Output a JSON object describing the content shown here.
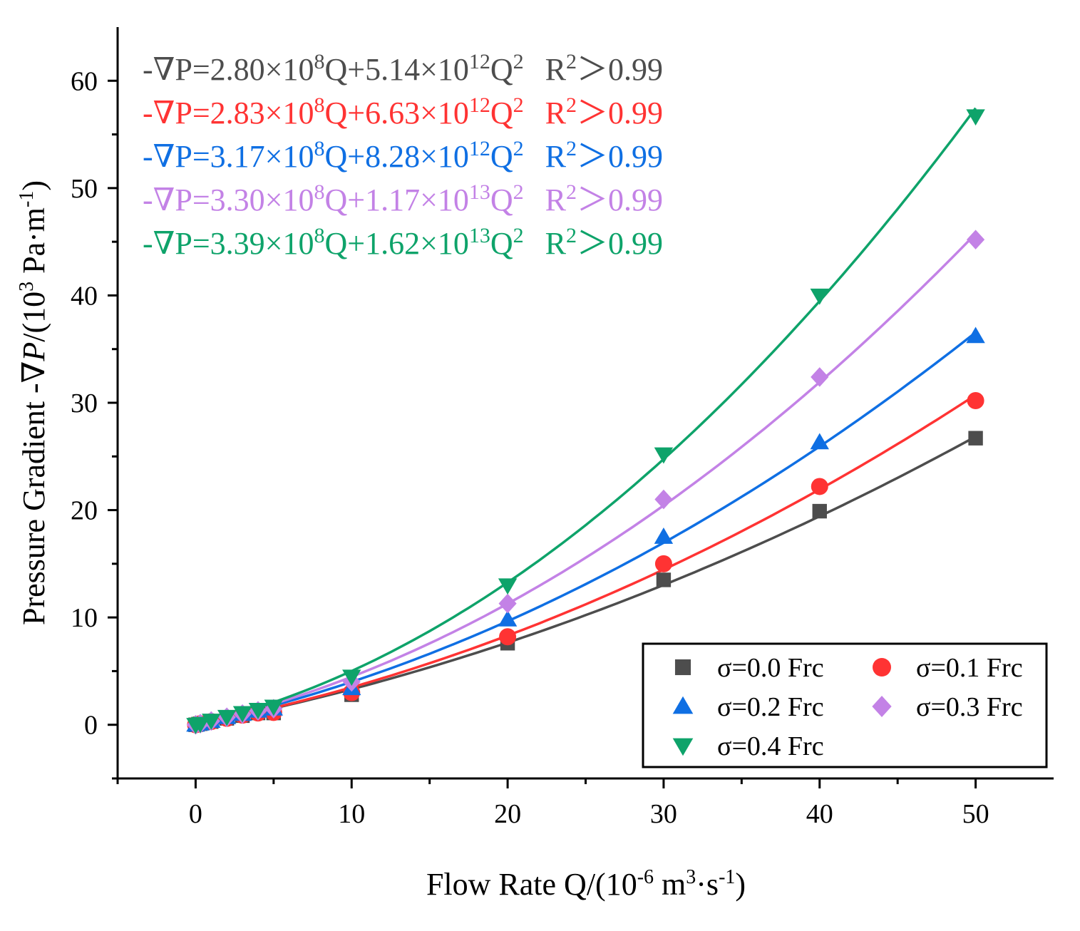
{
  "chart_data": {
    "type": "scatter",
    "xlabel": {
      "prefix": "Flow Rate Q/(10",
      "exp1": "-6",
      "mid1": " m",
      "exp2": "3",
      "mid2": "·s",
      "exp3": "-1",
      "suffix": ")"
    },
    "ylabel": {
      "prefix": "Pressure Gradient -∇",
      "italic": "P",
      "mid": "/(10",
      "exp1": "3",
      "mid2": " Pa·m",
      "exp2": "-1",
      "suffix": ")"
    },
    "xlim": [
      -5,
      55
    ],
    "ylim": [
      -5,
      65
    ],
    "x_ticks": [
      0,
      10,
      20,
      30,
      40,
      50
    ],
    "y_ticks": [
      0,
      10,
      20,
      30,
      40,
      50,
      60
    ],
    "x_tick_labels": [
      "0",
      "10",
      "20",
      "30",
      "40",
      "50"
    ],
    "y_tick_labels": [
      "0",
      "10",
      "20",
      "30",
      "40",
      "50",
      "60"
    ],
    "legend_position": "bottom-right",
    "series": [
      {
        "name": "σ=0.0 Frc",
        "color": "#4d4d4d",
        "marker": "square",
        "x": [
          0,
          0.3,
          1,
          2,
          3,
          4,
          5,
          10,
          20,
          30,
          40,
          50
        ],
        "y": [
          0,
          0.1,
          0.3,
          0.6,
          0.85,
          1.1,
          1.1,
          2.8,
          7.6,
          13.5,
          19.9,
          26.7
        ],
        "fit": {
          "a": 280000000.0,
          "b": 5140000000000.0
        },
        "equation": {
          "lead": "-∇P=2.80×10",
          "e1": "8",
          "mid": "Q+5.14×10",
          "e2": "12",
          "q": "Q",
          "e3": "2",
          "r": "R",
          "e4": "2",
          "tail": "＞0.99"
        }
      },
      {
        "name": "σ=0.1 Frc",
        "color": "#ff3333",
        "marker": "circle",
        "x": [
          0,
          0.3,
          1,
          2,
          3,
          4,
          5,
          10,
          20,
          30,
          40,
          50
        ],
        "y": [
          0,
          0.1,
          0.3,
          0.6,
          0.9,
          1.1,
          1.15,
          3.0,
          8.2,
          15.0,
          22.2,
          30.2
        ],
        "fit": {
          "a": 283000000.0,
          "b": 6630000000000.0
        },
        "equation": {
          "lead": "-∇P=2.83×10",
          "e1": "8",
          "mid": "Q+6.63×10",
          "e2": "12",
          "q": "Q",
          "e3": "2",
          "r": "R",
          "e4": "2",
          "tail": "＞0.99"
        }
      },
      {
        "name": "σ=0.2 Frc",
        "color": "#0f6fe3",
        "marker": "triangle-up",
        "x": [
          0,
          0.3,
          1,
          2,
          3,
          4,
          5,
          10,
          20,
          30,
          40,
          50
        ],
        "y": [
          0,
          0.1,
          0.35,
          0.7,
          1.0,
          1.3,
          1.5,
          3.4,
          9.8,
          17.5,
          26.3,
          36.2
        ],
        "fit": {
          "a": 317000000.0,
          "b": 8280000000000.0
        },
        "equation": {
          "lead": "-∇P=3.17×10",
          "e1": "8",
          "mid": "Q+8.28×10",
          "e2": "12",
          "q": "Q",
          "e3": "2",
          "r": "R",
          "e4": "2",
          "tail": "＞0.99"
        }
      },
      {
        "name": "σ=0.3 Frc",
        "color": "#c382e6",
        "marker": "diamond",
        "x": [
          0,
          0.3,
          1,
          2,
          3,
          4,
          5,
          10,
          20,
          30,
          40,
          50
        ],
        "y": [
          0,
          0.1,
          0.35,
          0.7,
          1.0,
          1.3,
          1.5,
          4.0,
          11.3,
          21.0,
          32.4,
          45.2
        ],
        "fit": {
          "a": 330000000.0,
          "b": 11700000000000.0
        },
        "equation": {
          "lead": "-∇P=3.30×10",
          "e1": "8",
          "mid": "Q+1.17×10",
          "e2": "13",
          "q": "Q",
          "e3": "2",
          "r": "R",
          "e4": "2",
          "tail": "＞0.99"
        }
      },
      {
        "name": "σ=0.4 Frc",
        "color": "#0ea36a",
        "marker": "triangle-down",
        "x": [
          0,
          0.3,
          1,
          2,
          3,
          4,
          5,
          10,
          20,
          30,
          40,
          50
        ],
        "y": [
          0,
          0.1,
          0.4,
          0.75,
          1.1,
          1.4,
          1.7,
          4.5,
          13.0,
          25.2,
          40.0,
          56.7
        ],
        "fit": {
          "a": 339000000.0,
          "b": 16200000000000.0
        },
        "equation": {
          "lead": "-∇P=3.39×10",
          "e1": "8",
          "mid": "Q+1.62×10",
          "e2": "13",
          "q": "Q",
          "e3": "2",
          "r": "R",
          "e4": "2",
          "tail": "＞0.99"
        }
      }
    ]
  }
}
